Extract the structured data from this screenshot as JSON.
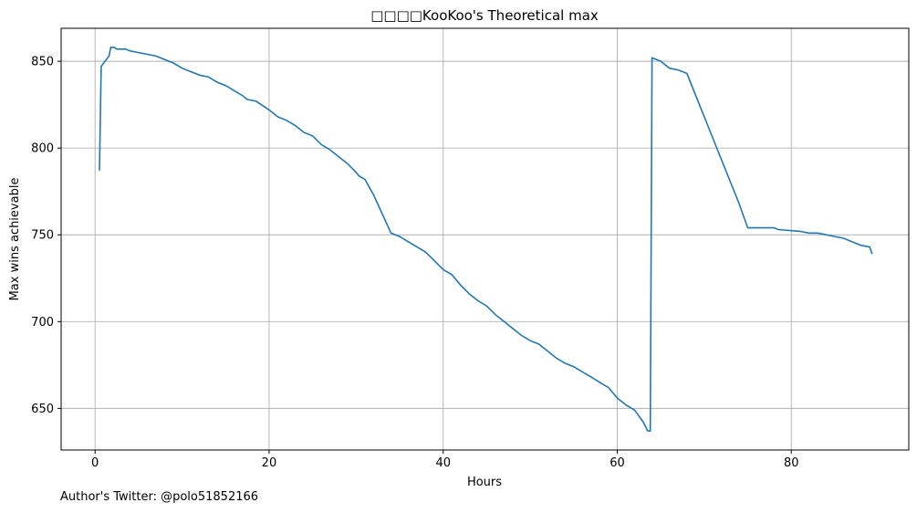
{
  "chart_data": {
    "type": "line",
    "title": "□□□□KooKoo's Theoretical max",
    "xlabel": "Hours",
    "ylabel": "Max wins achievable",
    "xlim": [
      -3.9,
      93.5
    ],
    "ylim": [
      626,
      869
    ],
    "xticks": [
      0,
      20,
      40,
      60,
      80
    ],
    "yticks": [
      650,
      700,
      750,
      800,
      850
    ],
    "grid": true,
    "series": [
      {
        "color": "#1f77b4",
        "points": [
          [
            0.5,
            787
          ],
          [
            0.7,
            847
          ],
          [
            1.0,
            849
          ],
          [
            1.3,
            851
          ],
          [
            1.6,
            853
          ],
          [
            1.8,
            858
          ],
          [
            2.2,
            858
          ],
          [
            2.5,
            857
          ],
          [
            3.5,
            857
          ],
          [
            4.0,
            856
          ],
          [
            5.0,
            855
          ],
          [
            6.0,
            854
          ],
          [
            7.0,
            853
          ],
          [
            8.0,
            851
          ],
          [
            9.0,
            849
          ],
          [
            10.0,
            846
          ],
          [
            11.0,
            844
          ],
          [
            12.0,
            842
          ],
          [
            13.0,
            841
          ],
          [
            14.0,
            838
          ],
          [
            15.0,
            836
          ],
          [
            16.0,
            833
          ],
          [
            17.0,
            830
          ],
          [
            17.5,
            828
          ],
          [
            18.5,
            827
          ],
          [
            20.0,
            822
          ],
          [
            21.0,
            818
          ],
          [
            22.0,
            816
          ],
          [
            23.0,
            813
          ],
          [
            24.0,
            809
          ],
          [
            25.0,
            807
          ],
          [
            26.0,
            802
          ],
          [
            27.0,
            799
          ],
          [
            28.0,
            795
          ],
          [
            29.0,
            791
          ],
          [
            30.0,
            786
          ],
          [
            30.3,
            784
          ],
          [
            31.0,
            782
          ],
          [
            32.0,
            773
          ],
          [
            33.0,
            762
          ],
          [
            34.0,
            751
          ],
          [
            35.0,
            749
          ],
          [
            36.0,
            746
          ],
          [
            37.0,
            743
          ],
          [
            38.0,
            740
          ],
          [
            39.0,
            735
          ],
          [
            40.0,
            730
          ],
          [
            41.0,
            727
          ],
          [
            42.0,
            721
          ],
          [
            43.0,
            716
          ],
          [
            44.0,
            712
          ],
          [
            45.0,
            709
          ],
          [
            46.0,
            704
          ],
          [
            47.0,
            700
          ],
          [
            48.0,
            696
          ],
          [
            49.0,
            692
          ],
          [
            50.0,
            689
          ],
          [
            51.0,
            687
          ],
          [
            52.0,
            683
          ],
          [
            53.0,
            679
          ],
          [
            54.0,
            676
          ],
          [
            55.0,
            674
          ],
          [
            56.0,
            671
          ],
          [
            57.0,
            668
          ],
          [
            58.0,
            665
          ],
          [
            59.0,
            662
          ],
          [
            60.0,
            656
          ],
          [
            61.0,
            652
          ],
          [
            62.0,
            649
          ],
          [
            63.0,
            642
          ],
          [
            63.5,
            637
          ],
          [
            63.8,
            637
          ],
          [
            64.0,
            852
          ],
          [
            65.0,
            850
          ],
          [
            66.0,
            846
          ],
          [
            67.0,
            845
          ],
          [
            68.0,
            843
          ],
          [
            70.0,
            818
          ],
          [
            72.0,
            793
          ],
          [
            74.0,
            768
          ],
          [
            75.0,
            754
          ],
          [
            76.0,
            754
          ],
          [
            78.0,
            754
          ],
          [
            78.5,
            753
          ],
          [
            81.0,
            752
          ],
          [
            82.0,
            751
          ],
          [
            83.0,
            751
          ],
          [
            84.0,
            750
          ],
          [
            85.0,
            749
          ],
          [
            86.0,
            748
          ],
          [
            87.0,
            746
          ],
          [
            88.0,
            744
          ],
          [
            89.0,
            743
          ],
          [
            89.3,
            739
          ]
        ]
      }
    ]
  },
  "footer": "Author's Twitter: @polo51852166"
}
